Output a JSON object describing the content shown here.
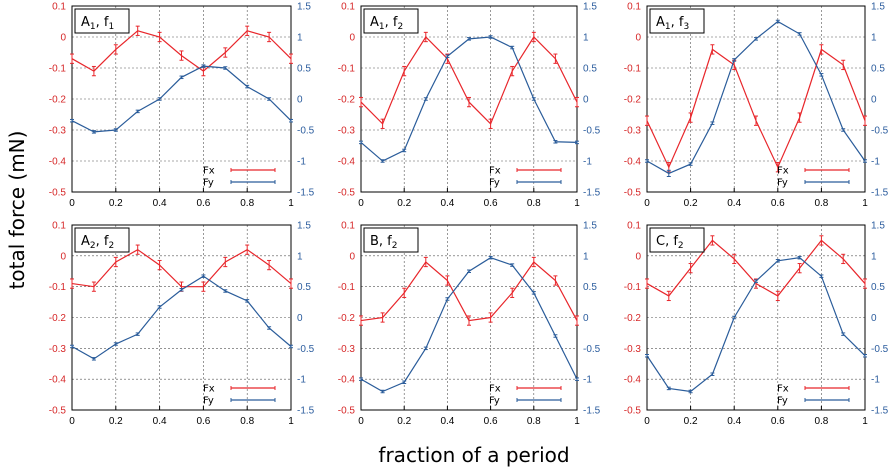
{
  "figure": {
    "ylabel": "total force (mN)",
    "xlabel": "fraction of a period",
    "colors": {
      "left_axis": "#d62728",
      "right_axis": "#2c5d9e",
      "fx": "#e8262b",
      "fy": "#2a5c9a"
    }
  },
  "chart_data": [
    {
      "type": "line",
      "title_main": "A",
      "title_sub1": "1",
      "title_sep": ", f",
      "title_sub2": "1",
      "x": [
        0,
        0.1,
        0.2,
        0.3,
        0.4,
        0.5,
        0.6,
        0.7,
        0.8,
        0.9,
        1
      ],
      "xlim": [
        0,
        1
      ],
      "xticks": [
        "0",
        "0.2",
        "0.4",
        "0.6",
        "0.8",
        "1"
      ],
      "ylim_left": [
        -0.5,
        0.1
      ],
      "yticks_left": [
        "0.1",
        "0",
        "-0.1",
        "-0.2",
        "-0.3",
        "-0.4",
        "-0.5"
      ],
      "ylim_right": [
        -1.5,
        1.5
      ],
      "yticks_right": [
        "1.5",
        "1",
        "0.5",
        "0",
        "-0.5",
        "-1",
        "-1.5"
      ],
      "grid": true,
      "legend_position": "bottom-right",
      "series": [
        {
          "name": "Fx",
          "axis": "left",
          "values": [
            -0.07,
            -0.11,
            -0.04,
            0.02,
            0.0,
            -0.06,
            -0.11,
            -0.05,
            0.02,
            0.0,
            -0.07
          ],
          "errors": [
            0.015,
            0.015,
            0.015,
            0.015,
            0.015,
            0.015,
            0.015,
            0.015,
            0.015,
            0.015,
            0.015
          ]
        },
        {
          "name": "Fy",
          "axis": "right",
          "values": [
            -0.35,
            -0.53,
            -0.5,
            -0.2,
            0.0,
            0.35,
            0.53,
            0.5,
            0.2,
            0.0,
            -0.35
          ],
          "errors": [
            0.02,
            0.02,
            0.02,
            0.02,
            0.02,
            0.02,
            0.02,
            0.02,
            0.02,
            0.02,
            0.02
          ]
        }
      ]
    },
    {
      "type": "line",
      "title_main": "A",
      "title_sub1": "1",
      "title_sep": ", f",
      "title_sub2": "2",
      "x": [
        0,
        0.1,
        0.2,
        0.3,
        0.4,
        0.5,
        0.6,
        0.7,
        0.8,
        0.9,
        1
      ],
      "xlim": [
        0,
        1
      ],
      "xticks": [
        "0",
        "0.2",
        "0.4",
        "0.6",
        "0.8",
        "1"
      ],
      "ylim_left": [
        -0.5,
        0.1
      ],
      "yticks_left": [
        "0.1",
        "0",
        "-0.1",
        "-0.2",
        "-0.3",
        "-0.4",
        "-0.5"
      ],
      "ylim_right": [
        -1.5,
        1.5
      ],
      "yticks_right": [
        "1.5",
        "1",
        "0.5",
        "0",
        "-0.5",
        "-1",
        "-1.5"
      ],
      "grid": true,
      "legend_position": "bottom-right",
      "series": [
        {
          "name": "Fx",
          "axis": "left",
          "values": [
            -0.21,
            -0.28,
            -0.11,
            0.0,
            -0.07,
            -0.21,
            -0.28,
            -0.11,
            0.0,
            -0.07,
            -0.21
          ],
          "errors": [
            0.015,
            0.015,
            0.015,
            0.015,
            0.015,
            0.015,
            0.015,
            0.015,
            0.015,
            0.015,
            0.015
          ]
        },
        {
          "name": "Fy",
          "axis": "right",
          "values": [
            -0.7,
            -1.0,
            -0.83,
            0.0,
            0.69,
            0.97,
            1.0,
            0.83,
            0.0,
            -0.69,
            -0.7
          ],
          "errors": [
            0.02,
            0.02,
            0.02,
            0.02,
            0.02,
            0.02,
            0.02,
            0.02,
            0.02,
            0.02,
            0.02
          ]
        }
      ]
    },
    {
      "type": "line",
      "title_main": "A",
      "title_sub1": "1",
      "title_sep": ", f",
      "title_sub2": "3",
      "x": [
        0,
        0.1,
        0.2,
        0.3,
        0.4,
        0.5,
        0.6,
        0.7,
        0.8,
        0.9,
        1
      ],
      "xlim": [
        0,
        1
      ],
      "xticks": [
        "0",
        "0.2",
        "0.4",
        "0.6",
        "0.8",
        "1"
      ],
      "ylim_left": [
        -0.5,
        0.1
      ],
      "yticks_left": [
        "0.1",
        "0",
        "-0.1",
        "-0.2",
        "-0.3",
        "-0.4",
        "-0.5"
      ],
      "ylim_right": [
        -1.5,
        1.5
      ],
      "yticks_right": [
        "1.5",
        "1",
        "0.5",
        "0",
        "-0.5",
        "-1",
        "-1.5"
      ],
      "grid": true,
      "legend_position": "bottom-right",
      "series": [
        {
          "name": "Fx",
          "axis": "left",
          "values": [
            -0.27,
            -0.42,
            -0.26,
            -0.04,
            -0.09,
            -0.27,
            -0.42,
            -0.26,
            -0.04,
            -0.09,
            -0.27
          ],
          "errors": [
            0.015,
            0.015,
            0.015,
            0.015,
            0.015,
            0.015,
            0.015,
            0.015,
            0.015,
            0.015,
            0.015
          ]
        },
        {
          "name": "Fy",
          "axis": "right",
          "values": [
            -1.0,
            -1.2,
            -1.05,
            -0.39,
            0.63,
            0.97,
            1.25,
            1.05,
            0.39,
            -0.5,
            -1.0
          ],
          "errors": [
            0.02,
            0.05,
            0.02,
            0.02,
            0.02,
            0.02,
            0.02,
            0.02,
            0.02,
            0.02,
            0.02
          ]
        }
      ]
    },
    {
      "type": "line",
      "title_main": "A",
      "title_sub1": "2",
      "title_sep": ", f",
      "title_sub2": "2",
      "x": [
        0,
        0.1,
        0.2,
        0.3,
        0.4,
        0.5,
        0.6,
        0.7,
        0.8,
        0.9,
        1
      ],
      "xlim": [
        0,
        1
      ],
      "xticks": [
        "0",
        "0.2",
        "0.4",
        "0.6",
        "0.8",
        "1"
      ],
      "ylim_left": [
        -0.5,
        0.1
      ],
      "yticks_left": [
        "0.1",
        "0",
        "-0.1",
        "-0.2",
        "-0.3",
        "-0.4",
        "-0.5"
      ],
      "ylim_right": [
        -1.5,
        1.5
      ],
      "yticks_right": [
        "1.5",
        "1",
        "0.5",
        "0",
        "-0.5",
        "-1",
        "-1.5"
      ],
      "grid": true,
      "legend_position": "bottom-right",
      "series": [
        {
          "name": "Fx",
          "axis": "left",
          "values": [
            -0.09,
            -0.1,
            -0.02,
            0.02,
            -0.03,
            -0.1,
            -0.1,
            -0.02,
            0.02,
            -0.03,
            -0.09
          ],
          "errors": [
            0.015,
            0.015,
            0.015,
            0.015,
            0.015,
            0.015,
            0.015,
            0.015,
            0.015,
            0.015,
            0.015
          ]
        },
        {
          "name": "Fy",
          "axis": "right",
          "values": [
            -0.47,
            -0.67,
            -0.43,
            -0.27,
            0.17,
            0.45,
            0.67,
            0.43,
            0.27,
            -0.17,
            -0.47
          ],
          "errors": [
            0.02,
            0.02,
            0.02,
            0.02,
            0.02,
            0.02,
            0.02,
            0.02,
            0.02,
            0.02,
            0.02
          ]
        }
      ]
    },
    {
      "type": "line",
      "title_main": "B",
      "title_sub1": "",
      "title_sep": ", f",
      "title_sub2": "2",
      "x": [
        0,
        0.1,
        0.2,
        0.3,
        0.4,
        0.5,
        0.6,
        0.7,
        0.8,
        0.9,
        1
      ],
      "xlim": [
        0,
        1
      ],
      "xticks": [
        "0",
        "0.2",
        "0.4",
        "0.6",
        "0.8",
        "1"
      ],
      "ylim_left": [
        -0.5,
        0.1
      ],
      "yticks_left": [
        "0.1",
        "0",
        "-0.1",
        "-0.2",
        "-0.3",
        "-0.4",
        "-0.5"
      ],
      "ylim_right": [
        -1.5,
        1.5
      ],
      "yticks_right": [
        "1.5",
        "1",
        "0.5",
        "0",
        "-0.5",
        "-1",
        "-1.5"
      ],
      "grid": true,
      "legend_position": "bottom-right",
      "series": [
        {
          "name": "Fx",
          "axis": "left",
          "values": [
            -0.21,
            -0.2,
            -0.12,
            -0.02,
            -0.08,
            -0.21,
            -0.2,
            -0.12,
            -0.02,
            -0.08,
            -0.21
          ],
          "errors": [
            0.015,
            0.015,
            0.015,
            0.015,
            0.015,
            0.015,
            0.015,
            0.015,
            0.015,
            0.015,
            0.015
          ]
        },
        {
          "name": "Fy",
          "axis": "right",
          "values": [
            -1.0,
            -1.2,
            -1.05,
            -0.5,
            0.3,
            0.75,
            0.97,
            0.85,
            0.4,
            -0.3,
            -1.0
          ],
          "errors": [
            0.02,
            0.02,
            0.02,
            0.02,
            0.02,
            0.02,
            0.02,
            0.02,
            0.02,
            0.02,
            0.02
          ]
        }
      ]
    },
    {
      "type": "line",
      "title_main": "C",
      "title_sub1": "",
      "title_sep": ", f",
      "title_sub2": "2",
      "x": [
        0,
        0.1,
        0.2,
        0.3,
        0.4,
        0.5,
        0.6,
        0.7,
        0.8,
        0.9,
        1
      ],
      "xlim": [
        0,
        1
      ],
      "xticks": [
        "0",
        "0.2",
        "0.4",
        "0.6",
        "0.8",
        "1"
      ],
      "ylim_left": [
        -0.5,
        0.1
      ],
      "yticks_left": [
        "0.1",
        "0",
        "-0.1",
        "-0.2",
        "-0.3",
        "-0.4",
        "-0.5"
      ],
      "ylim_right": [
        -1.5,
        1.5
      ],
      "yticks_right": [
        "1.5",
        "1",
        "0.5",
        "0",
        "-0.5",
        "-1",
        "-1.5"
      ],
      "grid": true,
      "legend_position": "bottom-right",
      "series": [
        {
          "name": "Fx",
          "axis": "left",
          "values": [
            -0.09,
            -0.13,
            -0.04,
            0.05,
            -0.01,
            -0.09,
            -0.13,
            -0.04,
            0.05,
            -0.01,
            -0.09
          ],
          "errors": [
            0.015,
            0.015,
            0.015,
            0.015,
            0.015,
            0.015,
            0.015,
            0.015,
            0.015,
            0.015,
            0.015
          ]
        },
        {
          "name": "Fy",
          "axis": "right",
          "values": [
            -0.62,
            -1.15,
            -1.2,
            -0.92,
            0.0,
            0.59,
            0.92,
            0.97,
            0.67,
            -0.27,
            -0.62
          ],
          "errors": [
            0.02,
            0.02,
            0.02,
            0.02,
            0.02,
            0.02,
            0.02,
            0.02,
            0.02,
            0.02,
            0.02
          ]
        }
      ]
    }
  ]
}
